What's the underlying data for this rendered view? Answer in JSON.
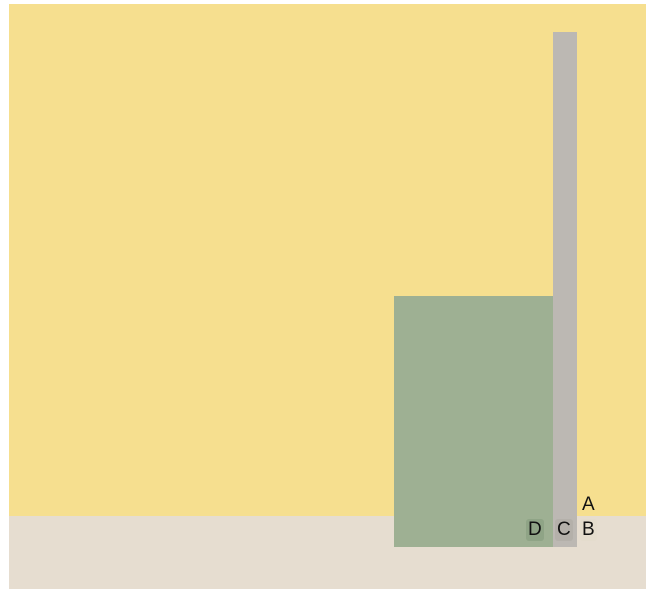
{
  "colors": {
    "background": "#f6df8f",
    "ground": "#e6ddd0",
    "green_block": "#9eb093",
    "pole": "#bcb8b3",
    "label_bg_light": "#e4dccd",
    "label_bg_green": "#8fa486",
    "label_bg_pole": "#b4b0aa"
  },
  "labels": {
    "a": "A",
    "b": "B",
    "c": "C",
    "d": "D"
  }
}
